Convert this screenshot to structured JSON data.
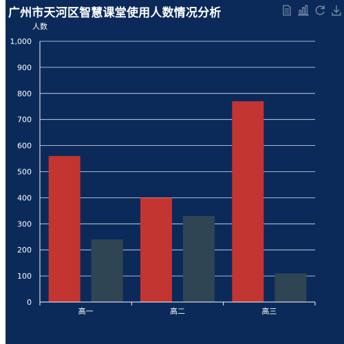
{
  "toolbox": {
    "icons": [
      "data-view-icon",
      "bar-chart-icon",
      "restore-icon",
      "save-image-icon"
    ]
  },
  "colors": {
    "background": "#0b2a5a",
    "series_1": "#c23531",
    "series_2": "#2f4554",
    "text": "#ffffff",
    "toolbox_icon": "#7a8ea8"
  },
  "chart_data": {
    "type": "bar",
    "title": "广州市天河区智慧课堂使用人数情况分析",
    "ylabel": "人数",
    "xlabel": "",
    "categories": [
      "高一",
      "高二",
      "高三"
    ],
    "ylim": [
      0,
      1000
    ],
    "yticks": [
      0,
      100,
      200,
      300,
      400,
      500,
      600,
      700,
      800,
      900,
      1000
    ],
    "ytick_labels": [
      "0",
      "100",
      "200",
      "300",
      "400",
      "500",
      "600",
      "700",
      "800",
      "900",
      "1,000"
    ],
    "grid": true,
    "series": [
      {
        "values": [
          560,
          400,
          770
        ]
      },
      {
        "values": [
          240,
          330,
          110
        ]
      }
    ]
  }
}
